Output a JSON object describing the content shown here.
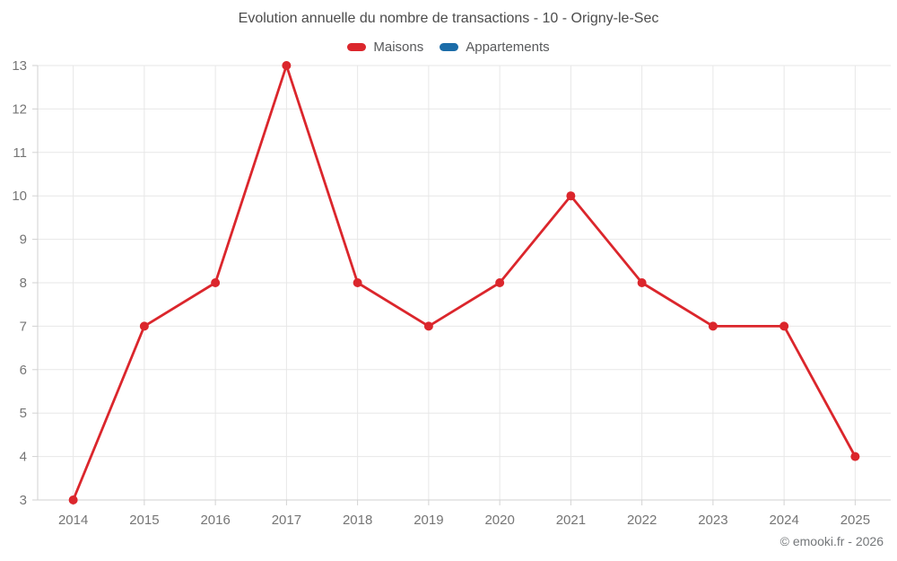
{
  "title": "Evolution annuelle du nombre de transactions - 10 - Origny-le-Sec",
  "footer": "© emooki.fr - 2026",
  "legend": [
    {
      "label": "Maisons",
      "color": "#db262c"
    },
    {
      "label": "Appartements",
      "color": "#1b6ca8"
    }
  ],
  "colors": {
    "maisons_red": "#db262c",
    "appartements_blue": "#1b6ca8",
    "gridline": "#e7e7e7",
    "axis_line": "#d2d2d2",
    "tick_label": "#757575",
    "title_text": "#4c4c4c"
  },
  "chart_data": {
    "type": "line",
    "title": "Evolution annuelle du nombre de transactions - 10 - Origny-le-Sec",
    "categories": [
      "2014",
      "2015",
      "2016",
      "2017",
      "2018",
      "2019",
      "2020",
      "2021",
      "2022",
      "2023",
      "2024",
      "2025"
    ],
    "series": [
      {
        "name": "Maisons",
        "color": "#db262c",
        "values": [
          3,
          7,
          8,
          13,
          8,
          7,
          8,
          10,
          8,
          7,
          7,
          4
        ]
      },
      {
        "name": "Appartements",
        "color": "#1b6ca8",
        "values": []
      }
    ],
    "xlabel": "",
    "ylabel": "",
    "ylim": [
      3,
      13
    ],
    "yticks": [
      3,
      4,
      5,
      6,
      7,
      8,
      9,
      10,
      11,
      12,
      13
    ],
    "grid": true,
    "legend_position": "top",
    "marker_radius": 5,
    "line_width": 2.8
  }
}
